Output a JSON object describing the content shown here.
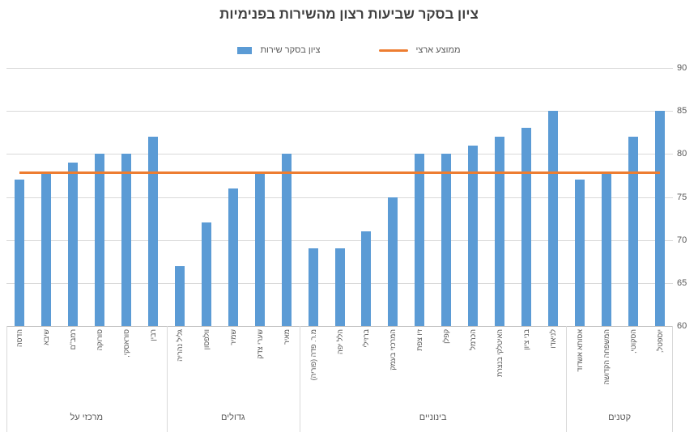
{
  "title": "ציון בסקר שביעות רצון מהשירות בפנימיות",
  "legend": {
    "series_label": "ציון בסקר שירות",
    "average_label": "ממוצע ארצי"
  },
  "colors": {
    "bar": "#5B9BD5",
    "average_line": "#ED7D31",
    "grid": "#D9D9D9",
    "axis_line": "#BFBFBF",
    "axis_text": "#595959",
    "title_text": "#404040"
  },
  "chart_data": {
    "type": "bar",
    "title": "ציון בסקר שביעות רצון מהשירות בפנימיות",
    "xlabel": "",
    "ylabel": "",
    "ylim": [
      60,
      90
    ],
    "yticks": [
      60,
      65,
      70,
      75,
      80,
      85,
      90
    ],
    "grid": true,
    "legend_position": "top",
    "yaxis_side": "right",
    "series_name": "ציון בסקר שירות",
    "average_line": {
      "label": "ממוצע ארצי",
      "value": 77.8
    },
    "groups": [
      {
        "label": "מרכזי על",
        "categories": [
          "הדסה",
          "שיבא",
          "רמב\"ם",
          "סורוקה",
          "סוראסקי,",
          "רבין"
        ],
        "values": [
          77,
          78,
          79,
          80,
          80,
          82
        ]
      },
      {
        "label": "גדולים",
        "categories": [
          "גליל נהריה",
          "וולפסון",
          "שמיר",
          "שערי צדק",
          "מאיר"
        ],
        "values": [
          67,
          72,
          76,
          78,
          80
        ]
      },
      {
        "label": "בינוניים",
        "categories": [
          "מ.ר. פדה (פוריה)",
          "הלל יפה",
          "ברזילי",
          "המרכזי בעמק",
          "זיו צפת",
          "קפלן",
          "הכרמל",
          "האיטלקי בנצרת",
          "בני ציון",
          "לניאדו"
        ],
        "values": [
          69,
          69,
          71,
          75,
          80,
          80,
          81,
          82,
          83,
          85
        ]
      },
      {
        "label": "קטנים",
        "categories": [
          "אסותא אשדוד",
          "המשפחה הקדושה",
          "הסקוטי,",
          "יוספטל,"
        ],
        "values": [
          77,
          78,
          82,
          85
        ]
      }
    ]
  }
}
